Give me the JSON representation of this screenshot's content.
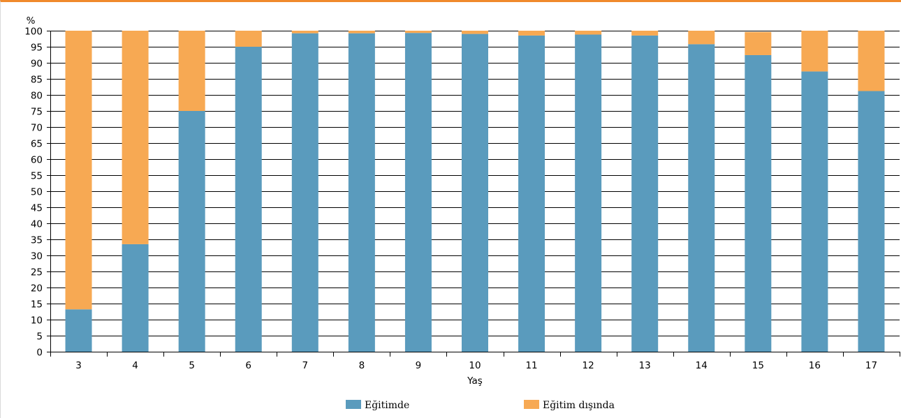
{
  "chart_data": {
    "type": "bar",
    "stacked": true,
    "categories": [
      "3",
      "4",
      "5",
      "6",
      "7",
      "8",
      "9",
      "10",
      "11",
      "12",
      "13",
      "14",
      "15",
      "16",
      "17"
    ],
    "series": [
      {
        "name": "Eğitimde",
        "color": "#5a9bbd",
        "values": [
          13.2,
          33.5,
          75.0,
          95.0,
          99.2,
          99.2,
          99.3,
          99.0,
          98.5,
          98.8,
          98.5,
          95.8,
          92.4,
          87.3,
          81.2
        ]
      },
      {
        "name": "Eğitim dışında",
        "color": "#f7a953",
        "values": [
          86.8,
          66.5,
          25.0,
          5.0,
          0.8,
          0.8,
          0.7,
          1.0,
          1.5,
          1.2,
          1.5,
          4.2,
          7.2,
          12.7,
          18.8
        ]
      }
    ],
    "ylabel": "%",
    "xlabel": "Yaş",
    "ylim": [
      0,
      100
    ],
    "yticks": [
      "0",
      "5",
      "10",
      "15",
      "20",
      "25",
      "30",
      "35",
      "40",
      "45",
      "50",
      "55",
      "60",
      "65",
      "70",
      "75",
      "80",
      "85",
      "90",
      "95",
      "100"
    ],
    "grid": true,
    "legend_position": "bottom"
  }
}
